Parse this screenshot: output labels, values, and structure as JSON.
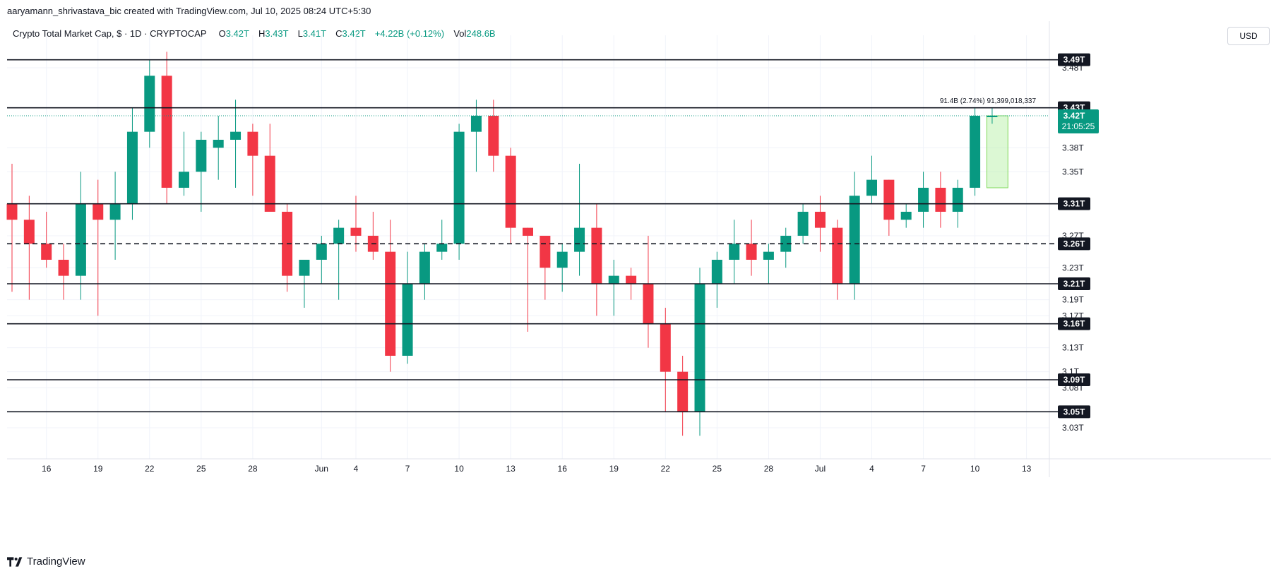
{
  "header": {
    "attribution": "aaryamann_shrivastava_bic created with TradingView.com, Jul 10, 2025 08:24 UTC+5:30",
    "symbol": "Crypto Total Market Cap, $ · 1D · CRYPTOCAP",
    "o_label": "O",
    "o_value": "3.42T",
    "h_label": "H",
    "h_value": "3.43T",
    "l_label": "L",
    "l_value": "3.41T",
    "c_label": "C",
    "c_value": "3.42T",
    "change": "+4.22B (+0.12%)",
    "vol_label": "Vol",
    "vol_value": "248.6B",
    "currency_button": "USD"
  },
  "footer": {
    "brand": "TradingView"
  },
  "colors": {
    "up": "#089981",
    "down": "#f23645",
    "line": "#131722",
    "grid": "#f0f3fa",
    "highlight": "#b2f0a0"
  },
  "chart_data": {
    "type": "candlestick",
    "x_tick_labels": [
      "16",
      "19",
      "22",
      "25",
      "28",
      "Jun",
      "4",
      "7",
      "10",
      "13",
      "16",
      "19",
      "22",
      "25",
      "28",
      "Jul",
      "4",
      "7",
      "10",
      "13"
    ],
    "y_tick_labels": [
      "3.48T",
      "3.38T",
      "3.35T",
      "3.31T",
      "3.27T",
      "3.23T",
      "3.19T",
      "3.17T",
      "3.13T",
      "3.1T",
      "3.08T",
      "3.05T",
      "3.03T"
    ],
    "ylim": [
      3.0,
      3.51
    ],
    "candles": [
      {
        "d": "May 14",
        "o": 3.31,
        "h": 3.36,
        "l": 3.2,
        "c": 3.29
      },
      {
        "d": "May 15",
        "o": 3.29,
        "h": 3.32,
        "l": 3.19,
        "c": 3.26
      },
      {
        "d": "May 16",
        "o": 3.26,
        "h": 3.3,
        "l": 3.23,
        "c": 3.24
      },
      {
        "d": "May 17",
        "o": 3.24,
        "h": 3.26,
        "l": 3.19,
        "c": 3.22
      },
      {
        "d": "May 18",
        "o": 3.22,
        "h": 3.35,
        "l": 3.19,
        "c": 3.31
      },
      {
        "d": "May 19",
        "o": 3.31,
        "h": 3.34,
        "l": 3.17,
        "c": 3.29
      },
      {
        "d": "May 20",
        "o": 3.29,
        "h": 3.35,
        "l": 3.24,
        "c": 3.31
      },
      {
        "d": "May 21",
        "o": 3.31,
        "h": 3.43,
        "l": 3.29,
        "c": 3.4
      },
      {
        "d": "May 22",
        "o": 3.4,
        "h": 3.49,
        "l": 3.38,
        "c": 3.47
      },
      {
        "d": "May 23",
        "o": 3.47,
        "h": 3.5,
        "l": 3.31,
        "c": 3.33
      },
      {
        "d": "May 24",
        "o": 3.33,
        "h": 3.4,
        "l": 3.32,
        "c": 3.35
      },
      {
        "d": "May 25",
        "o": 3.35,
        "h": 3.4,
        "l": 3.3,
        "c": 3.39
      },
      {
        "d": "May 26",
        "o": 3.38,
        "h": 3.42,
        "l": 3.34,
        "c": 3.39
      },
      {
        "d": "May 27",
        "o": 3.39,
        "h": 3.44,
        "l": 3.33,
        "c": 3.4
      },
      {
        "d": "May 28",
        "o": 3.4,
        "h": 3.41,
        "l": 3.32,
        "c": 3.37
      },
      {
        "d": "May 29",
        "o": 3.37,
        "h": 3.41,
        "l": 3.3,
        "c": 3.3
      },
      {
        "d": "May 30",
        "o": 3.3,
        "h": 3.31,
        "l": 3.2,
        "c": 3.22
      },
      {
        "d": "May 31",
        "o": 3.22,
        "h": 3.24,
        "l": 3.18,
        "c": 3.24
      },
      {
        "d": "Jun 1",
        "o": 3.24,
        "h": 3.27,
        "l": 3.21,
        "c": 3.26
      },
      {
        "d": "Jun 2",
        "o": 3.26,
        "h": 3.29,
        "l": 3.19,
        "c": 3.28
      },
      {
        "d": "Jun 3",
        "o": 3.28,
        "h": 3.32,
        "l": 3.25,
        "c": 3.27
      },
      {
        "d": "Jun 4",
        "o": 3.27,
        "h": 3.3,
        "l": 3.24,
        "c": 3.25
      },
      {
        "d": "Jun 5",
        "o": 3.25,
        "h": 3.29,
        "l": 3.1,
        "c": 3.12
      },
      {
        "d": "Jun 6",
        "o": 3.12,
        "h": 3.25,
        "l": 3.11,
        "c": 3.21
      },
      {
        "d": "Jun 7",
        "o": 3.21,
        "h": 3.26,
        "l": 3.19,
        "c": 3.25
      },
      {
        "d": "Jun 8",
        "o": 3.25,
        "h": 3.29,
        "l": 3.24,
        "c": 3.26
      },
      {
        "d": "Jun 9",
        "o": 3.26,
        "h": 3.41,
        "l": 3.24,
        "c": 3.4
      },
      {
        "d": "Jun 10",
        "o": 3.4,
        "h": 3.44,
        "l": 3.35,
        "c": 3.42
      },
      {
        "d": "Jun 11",
        "o": 3.42,
        "h": 3.44,
        "l": 3.35,
        "c": 3.37
      },
      {
        "d": "Jun 12",
        "o": 3.37,
        "h": 3.38,
        "l": 3.26,
        "c": 3.28
      },
      {
        "d": "Jun 13",
        "o": 3.28,
        "h": 3.28,
        "l": 3.15,
        "c": 3.27
      },
      {
        "d": "Jun 14",
        "o": 3.27,
        "h": 3.27,
        "l": 3.19,
        "c": 3.23
      },
      {
        "d": "Jun 15",
        "o": 3.23,
        "h": 3.26,
        "l": 3.2,
        "c": 3.25
      },
      {
        "d": "Jun 16",
        "o": 3.25,
        "h": 3.36,
        "l": 3.22,
        "c": 3.28
      },
      {
        "d": "Jun 17",
        "o": 3.28,
        "h": 3.31,
        "l": 3.17,
        "c": 3.21
      },
      {
        "d": "Jun 18",
        "o": 3.21,
        "h": 3.24,
        "l": 3.17,
        "c": 3.22
      },
      {
        "d": "Jun 19",
        "o": 3.22,
        "h": 3.23,
        "l": 3.19,
        "c": 3.21
      },
      {
        "d": "Jun 20",
        "o": 3.21,
        "h": 3.27,
        "l": 3.13,
        "c": 3.16
      },
      {
        "d": "Jun 21",
        "o": 3.16,
        "h": 3.18,
        "l": 3.05,
        "c": 3.1
      },
      {
        "d": "Jun 22",
        "o": 3.1,
        "h": 3.12,
        "l": 3.02,
        "c": 3.05
      },
      {
        "d": "Jun 23",
        "o": 3.05,
        "h": 3.23,
        "l": 3.02,
        "c": 3.21
      },
      {
        "d": "Jun 24",
        "o": 3.21,
        "h": 3.25,
        "l": 3.18,
        "c": 3.24
      },
      {
        "d": "Jun 25",
        "o": 3.24,
        "h": 3.29,
        "l": 3.21,
        "c": 3.26
      },
      {
        "d": "Jun 26",
        "o": 3.26,
        "h": 3.29,
        "l": 3.22,
        "c": 3.24
      },
      {
        "d": "Jun 27",
        "o": 3.24,
        "h": 3.26,
        "l": 3.21,
        "c": 3.25
      },
      {
        "d": "Jun 28",
        "o": 3.25,
        "h": 3.28,
        "l": 3.23,
        "c": 3.27
      },
      {
        "d": "Jun 29",
        "o": 3.27,
        "h": 3.31,
        "l": 3.26,
        "c": 3.3
      },
      {
        "d": "Jun 30",
        "o": 3.3,
        "h": 3.32,
        "l": 3.25,
        "c": 3.28
      },
      {
        "d": "Jul 1",
        "o": 3.28,
        "h": 3.29,
        "l": 3.19,
        "c": 3.21
      },
      {
        "d": "Jul 2",
        "o": 3.21,
        "h": 3.35,
        "l": 3.19,
        "c": 3.32
      },
      {
        "d": "Jul 3",
        "o": 3.32,
        "h": 3.37,
        "l": 3.31,
        "c": 3.34
      },
      {
        "d": "Jul 4",
        "o": 3.34,
        "h": 3.34,
        "l": 3.27,
        "c": 3.29
      },
      {
        "d": "Jul 5",
        "o": 3.29,
        "h": 3.31,
        "l": 3.28,
        "c": 3.3
      },
      {
        "d": "Jul 6",
        "o": 3.3,
        "h": 3.35,
        "l": 3.28,
        "c": 3.33
      },
      {
        "d": "Jul 7",
        "o": 3.33,
        "h": 3.35,
        "l": 3.28,
        "c": 3.3
      },
      {
        "d": "Jul 8",
        "o": 3.3,
        "h": 3.34,
        "l": 3.28,
        "c": 3.33
      },
      {
        "d": "Jul 9",
        "o": 3.33,
        "h": 3.43,
        "l": 3.32,
        "c": 3.42
      },
      {
        "d": "Jul 10",
        "o": 3.42,
        "h": 3.43,
        "l": 3.41,
        "c": 3.42
      }
    ],
    "levels": [
      {
        "value": 3.49,
        "label": "3.49T",
        "style": "solid"
      },
      {
        "value": 3.43,
        "label": "3.43T",
        "style": "solid"
      },
      {
        "value": 3.31,
        "label": "3.31T",
        "style": "solid"
      },
      {
        "value": 3.26,
        "label": "3.26T",
        "style": "dashed"
      },
      {
        "value": 3.21,
        "label": "3.21T",
        "style": "solid"
      },
      {
        "value": 3.16,
        "label": "3.16T",
        "style": "solid"
      },
      {
        "value": 3.09,
        "label": "3.09T",
        "style": "solid"
      },
      {
        "value": 3.05,
        "label": "3.05T",
        "style": "solid"
      }
    ],
    "current_price": {
      "value": 3.42,
      "label": "3.42T",
      "countdown": "21:05:25"
    },
    "range_measure": {
      "from": 3.33,
      "to": 3.42,
      "label": "91.4B (2.74%) 91,399,018,337"
    }
  }
}
